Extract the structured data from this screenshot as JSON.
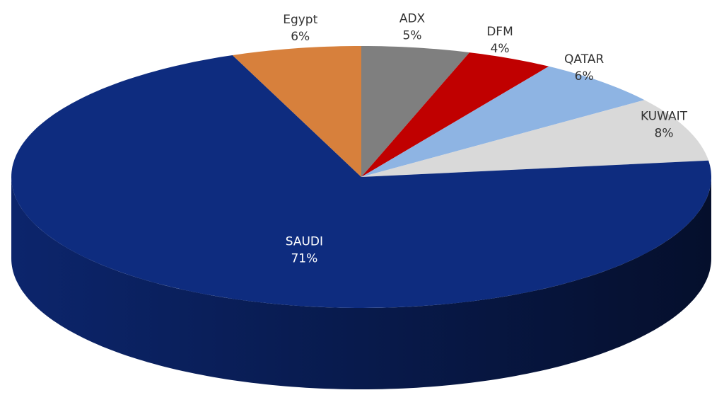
{
  "chart_data": {
    "type": "pie",
    "categories": [
      "ADX",
      "DFM",
      "QATAR",
      "KUWAIT",
      "SAUDI",
      "Egypt"
    ],
    "values": [
      5,
      4,
      6,
      8,
      71,
      6
    ],
    "value_labels": [
      "5%",
      "4%",
      "6%",
      "8%",
      "71%",
      "6%"
    ],
    "colors": [
      "#7f7f7f",
      "#c00000",
      "#8eb4e3",
      "#d9d9d9",
      "#0e2c7f",
      "#d7803c"
    ]
  }
}
